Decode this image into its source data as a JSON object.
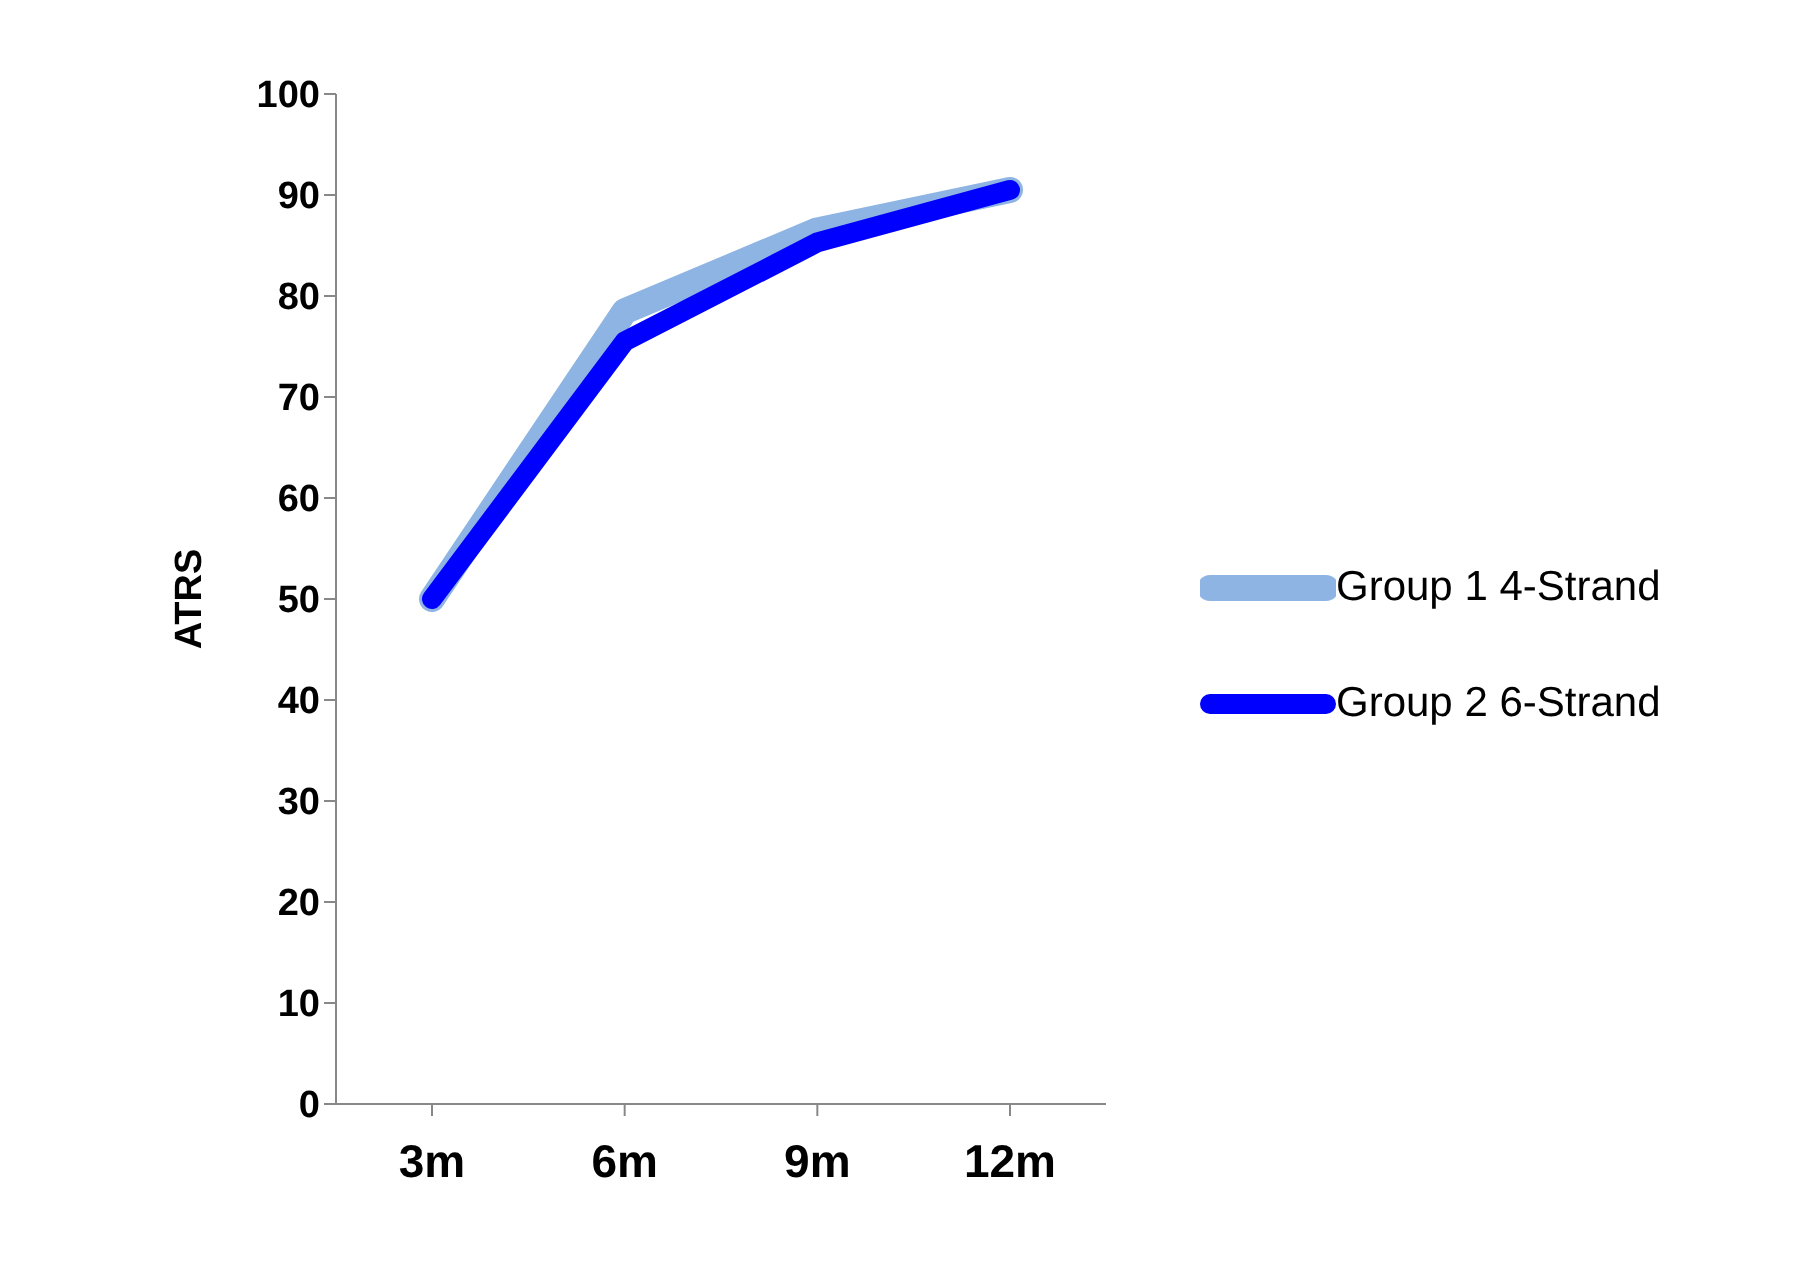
{
  "chart_data": {
    "type": "line",
    "ylabel": "ATRS",
    "categories": [
      "3m",
      "6m",
      "9m",
      "12m"
    ],
    "series": [
      {
        "name": "Group  1 4-Strand",
        "color": "#8eb4e3",
        "values": [
          50,
          78.5,
          86.5,
          90.5
        ]
      },
      {
        "name": "Group  2 6-Strand",
        "color": "#0000ff",
        "values": [
          50,
          75.5,
          85.3,
          90.5
        ]
      }
    ],
    "ylim": [
      0,
      100
    ],
    "yticks": [
      0,
      10,
      20,
      30,
      40,
      50,
      60,
      70,
      80,
      90,
      100
    ],
    "grid": false,
    "legend": "right",
    "marker": "none",
    "line_style": "solid"
  }
}
